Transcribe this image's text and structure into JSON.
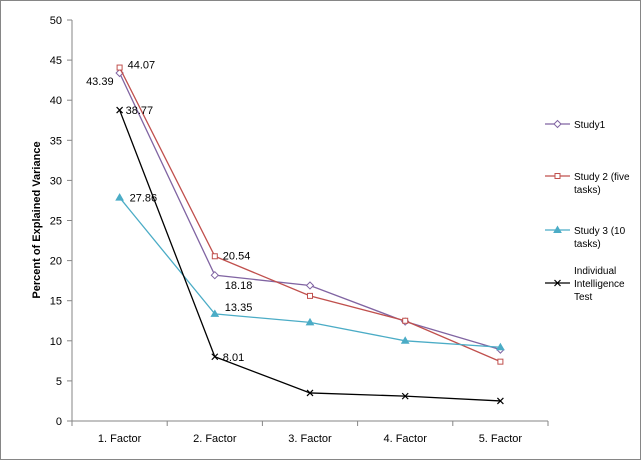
{
  "chart_data": {
    "type": "line",
    "title": "",
    "xlabel": "",
    "ylabel": "Percent of Explained Variance",
    "ylim": [
      0,
      50
    ],
    "yticks": [
      0,
      5,
      10,
      15,
      20,
      25,
      30,
      35,
      40,
      45,
      50
    ],
    "grid": false,
    "legend_position": "right",
    "categories": [
      "1. Factor",
      "2. Factor",
      "3. Factor",
      "4. Factor",
      "5. Factor"
    ],
    "series": [
      {
        "name": "Study1",
        "values": [
          43.39,
          18.18,
          16.9,
          12.4,
          8.9
        ],
        "color": "#8064a2",
        "marker": "diamond",
        "labels": [
          "43.39",
          "18.18",
          null,
          null,
          null
        ]
      },
      {
        "name": "Study 2 (five tasks)",
        "values": [
          44.07,
          20.54,
          15.6,
          12.5,
          7.4
        ],
        "color": "#c0504d",
        "marker": "square",
        "labels": [
          "44.07",
          "20.54",
          null,
          null,
          null
        ]
      },
      {
        "name": "Study 3 (10 tasks)",
        "values": [
          27.86,
          13.35,
          12.3,
          10.0,
          9.2
        ],
        "color": "#4bacc6",
        "marker": "triangle",
        "labels": [
          "27.86",
          "13.35",
          null,
          null,
          null
        ]
      },
      {
        "name": "Individual Intelligence Test",
        "values": [
          38.77,
          8.01,
          3.5,
          3.1,
          2.5
        ],
        "color": "#000000",
        "marker": "x",
        "labels": [
          "38.77",
          "8.01",
          null,
          null,
          null
        ]
      }
    ]
  }
}
